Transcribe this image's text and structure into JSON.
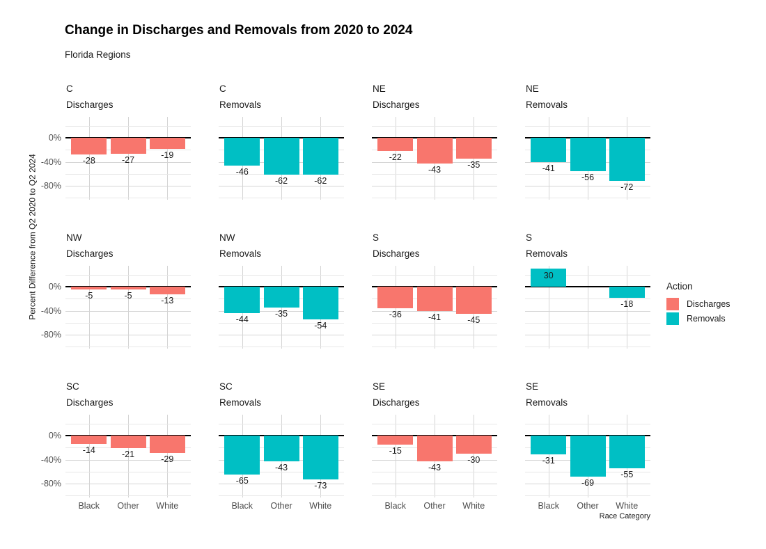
{
  "header": {
    "title": "Change in Discharges and Removals from 2020 to 2024",
    "subtitle": "Florida Regions"
  },
  "axes": {
    "y_title": "Percent Difference from Q2 2020 to Q2 2024",
    "x_title": "Race Category",
    "y_tick_labels": [
      "0%",
      "-40%",
      "-80%"
    ],
    "x_tick_labels": [
      "Black",
      "Other",
      "White"
    ]
  },
  "legend": {
    "title": "Action",
    "items": [
      {
        "label": "Discharges",
        "color": "#F8766D"
      },
      {
        "label": "Removals",
        "color": "#00BFC4"
      }
    ]
  },
  "colors": {
    "discharges": "#F8766D",
    "removals": "#00BFC4",
    "zero_line": "#000000",
    "grid_major": "#D4D4D4",
    "grid_minor": "#E7E7E7",
    "tick_text": "#4d4d4d",
    "label_text": "#1a1a1a"
  },
  "chart_data": {
    "type": "bar",
    "layout": "faceted small multiples, 4 columns x 3 rows, shared axes",
    "categories": [
      "Black",
      "Other",
      "White"
    ],
    "value_unit": "percent",
    "ylim": [
      -103,
      35
    ],
    "y_major_breaks": [
      0,
      -40,
      -80
    ],
    "y_minor_breaks": [
      20,
      -20,
      -60,
      -100
    ],
    "grid": true,
    "legend_position": "right",
    "facets": [
      {
        "region": "C",
        "action": "Discharges",
        "values": [
          -28,
          -27,
          -19
        ]
      },
      {
        "region": "C",
        "action": "Removals",
        "values": [
          -46,
          -62,
          -62
        ]
      },
      {
        "region": "NE",
        "action": "Discharges",
        "values": [
          -22,
          -43,
          -35
        ]
      },
      {
        "region": "NE",
        "action": "Removals",
        "values": [
          -41,
          -56,
          -72
        ]
      },
      {
        "region": "NW",
        "action": "Discharges",
        "values": [
          -5,
          -5,
          -13
        ]
      },
      {
        "region": "NW",
        "action": "Removals",
        "values": [
          -44,
          -35,
          -54
        ]
      },
      {
        "region": "S",
        "action": "Discharges",
        "values": [
          -36,
          -41,
          -45
        ]
      },
      {
        "region": "S",
        "action": "Removals",
        "values": [
          30,
          null,
          -18
        ]
      },
      {
        "region": "SC",
        "action": "Discharges",
        "values": [
          -14,
          -21,
          -29
        ]
      },
      {
        "region": "SC",
        "action": "Removals",
        "values": [
          -65,
          -43,
          -73
        ]
      },
      {
        "region": "SE",
        "action": "Discharges",
        "values": [
          -15,
          -43,
          -30
        ]
      },
      {
        "region": "SE",
        "action": "Removals",
        "values": [
          -31,
          -69,
          -55
        ]
      }
    ]
  }
}
